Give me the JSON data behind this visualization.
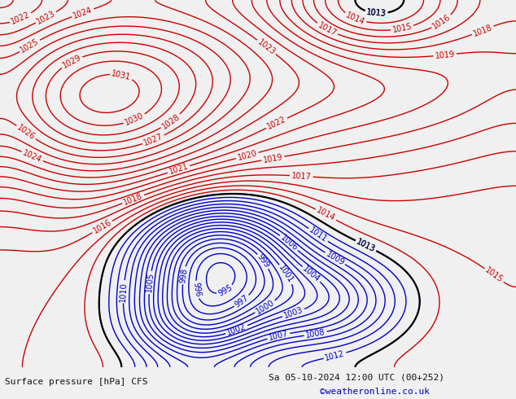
{
  "title_left": "Surface pressure [hPa] CFS",
  "title_right": "Sa 05-10-2024 12:00 UTC (00+252)",
  "credit": "©weatheronline.co.uk",
  "bg_map_color": "#b8ddb8",
  "bg_fig_color": "#c8e8c8",
  "bottom_text_color": "#111111",
  "credit_color": "#0000bb",
  "fig_width": 6.34,
  "fig_height": 4.9,
  "dpi": 100,
  "red_color": "#cc0000",
  "blue_color": "#0000cc",
  "black_color": "#000000",
  "label_fontsize": 7,
  "line_width": 1.0
}
